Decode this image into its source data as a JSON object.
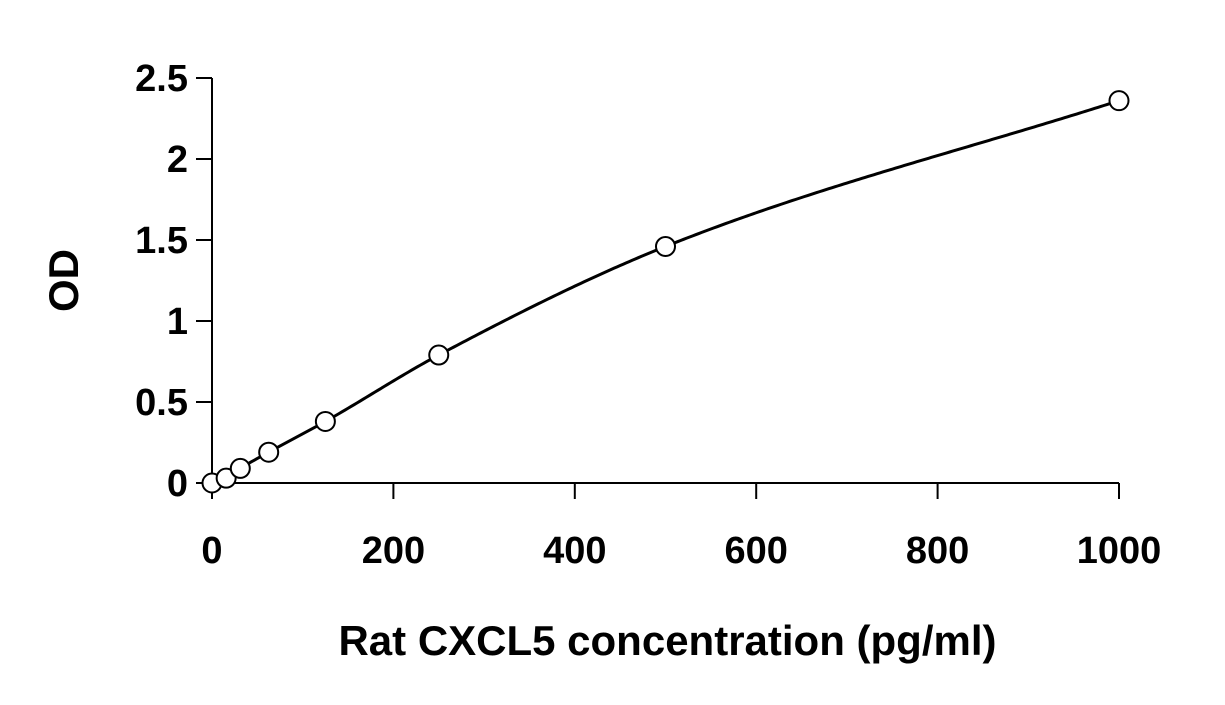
{
  "chart_data": {
    "type": "scatter",
    "title": "",
    "xlabel": "Rat CXCL5 concentration (pg/ml)",
    "ylabel": "OD",
    "xlim": [
      0,
      1000
    ],
    "ylim": [
      0,
      2.5
    ],
    "x_ticks": [
      0,
      200,
      400,
      600,
      800,
      1000
    ],
    "x_tick_labels": [
      "0",
      "200",
      "400",
      "600",
      "800",
      "1000"
    ],
    "y_ticks": [
      0,
      0.5,
      1,
      1.5,
      2,
      2.5
    ],
    "y_tick_labels": [
      "0",
      "0.5",
      "1",
      "1.5",
      "2",
      "2.5"
    ],
    "grid": false,
    "legend": "none",
    "series": [
      {
        "marker": "open-circle",
        "fit": "smooth-curve",
        "x": [
          0,
          15.6,
          31.2,
          62.5,
          125,
          250,
          500,
          1000
        ],
        "y": [
          0,
          0.03,
          0.09,
          0.19,
          0.38,
          0.79,
          1.46,
          2.36
        ]
      }
    ],
    "colors": {
      "line": "#000000",
      "marker_fill": "#ffffff",
      "marker_stroke": "#000000"
    }
  }
}
